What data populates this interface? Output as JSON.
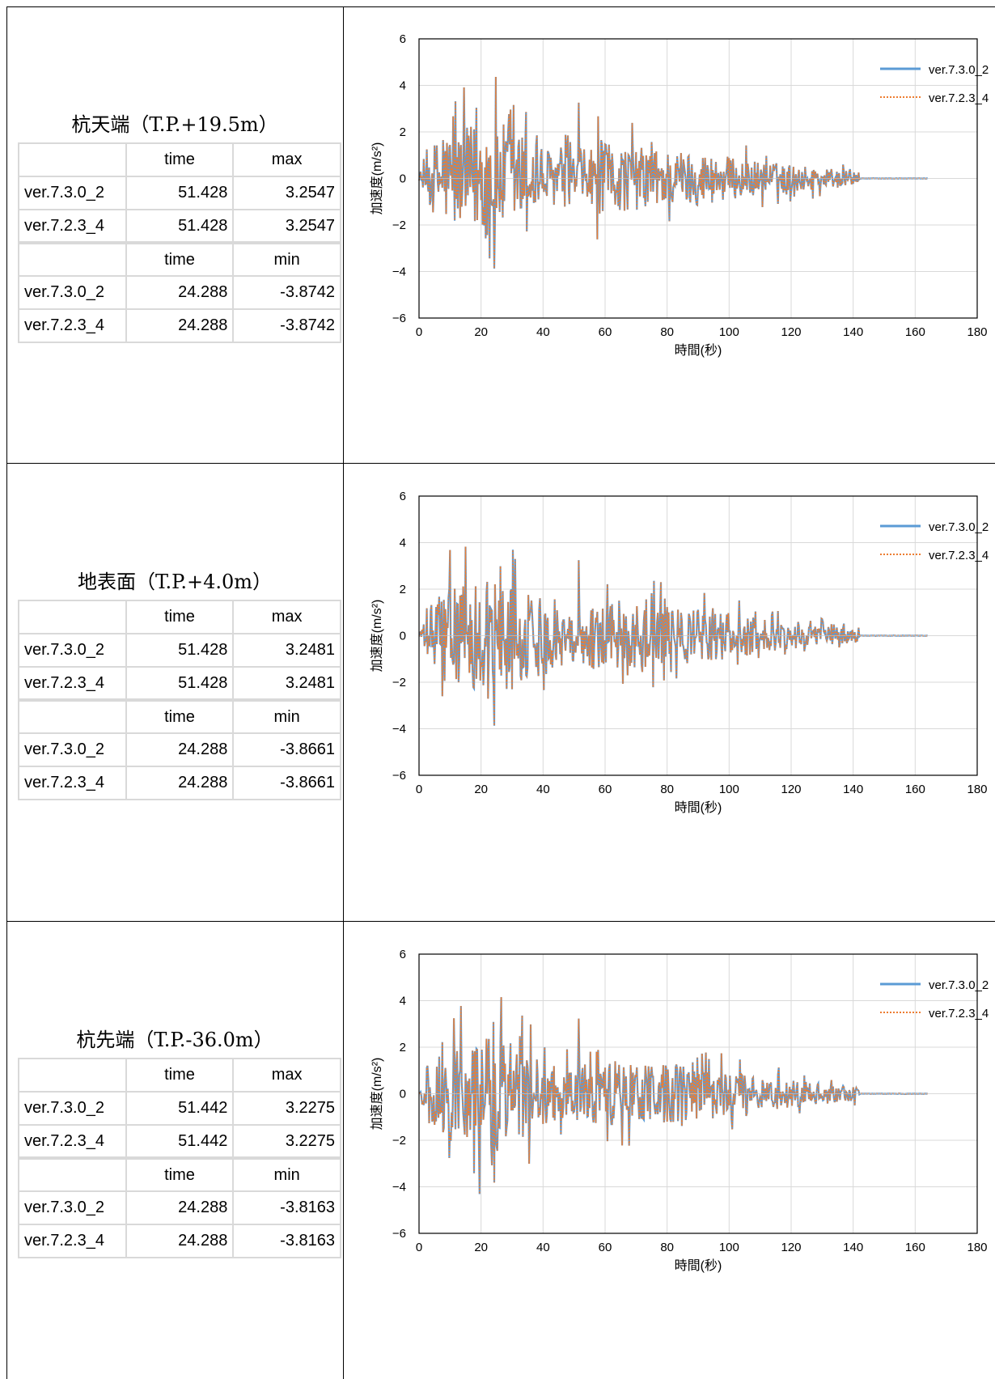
{
  "panels": [
    {
      "title": "杭天端（T.P.+19.5m）",
      "max_table": {
        "headers": [
          "",
          "time",
          "max"
        ],
        "rows": [
          [
            "ver.7.3.0_2",
            "51.428",
            "3.2547"
          ],
          [
            "ver.7.2.3_4",
            "51.428",
            "3.2547"
          ]
        ]
      },
      "min_table": {
        "headers": [
          "",
          "time",
          "min"
        ],
        "rows": [
          [
            "ver.7.3.0_2",
            "24.288",
            "-3.8742"
          ],
          [
            "ver.7.2.3_4",
            "24.288",
            "-3.8742"
          ]
        ]
      }
    },
    {
      "title": "地表面（T.P.+4.0m）",
      "max_table": {
        "headers": [
          "",
          "time",
          "max"
        ],
        "rows": [
          [
            "ver.7.3.0_2",
            "51.428",
            "3.2481"
          ],
          [
            "ver.7.2.3_4",
            "51.428",
            "3.2481"
          ]
        ]
      },
      "min_table": {
        "headers": [
          "",
          "time",
          "min"
        ],
        "rows": [
          [
            "ver.7.3.0_2",
            "24.288",
            "-3.8661"
          ],
          [
            "ver.7.2.3_4",
            "24.288",
            "-3.8661"
          ]
        ]
      }
    },
    {
      "title": "杭先端（T.P.-36.0m）",
      "max_table": {
        "headers": [
          "",
          "time",
          "max"
        ],
        "rows": [
          [
            "ver.7.3.0_2",
            "51.442",
            "3.2275"
          ],
          [
            "ver.7.2.3_4",
            "51.442",
            "3.2275"
          ]
        ]
      },
      "min_table": {
        "headers": [
          "",
          "time",
          "min"
        ],
        "rows": [
          [
            "ver.7.3.0_2",
            "24.288",
            "-3.8163"
          ],
          [
            "ver.7.2.3_4",
            "24.288",
            "-3.8163"
          ]
        ]
      }
    }
  ],
  "chart_data": [
    {
      "type": "line",
      "xlabel": "時間(秒)",
      "ylabel": "加速度(m/s²)",
      "xlim": [
        0,
        180
      ],
      "ylim": [
        -6,
        6
      ],
      "xticks": [
        "0",
        "20",
        "40",
        "60",
        "80",
        "100",
        "120",
        "140",
        "160",
        "180"
      ],
      "yticks": [
        "6",
        "4",
        "2",
        "0",
        "−2",
        "−4",
        "−6"
      ],
      "grid": true,
      "legend_position": "top-right",
      "series": [
        {
          "name": "ver.7.3.0_2",
          "color": "#5b9bd5",
          "style": "solid"
        },
        {
          "name": "ver.7.2.3_4",
          "color": "#ed7d31",
          "style": "dotted"
        }
      ],
      "peaks": [
        {
          "t": 51.428,
          "value": 3.2547
        },
        {
          "t": 24.288,
          "value": -3.8742
        }
      ],
      "duration": 164
    },
    {
      "type": "line",
      "xlabel": "時間(秒)",
      "ylabel": "加速度(m/s²)",
      "xlim": [
        0,
        180
      ],
      "ylim": [
        -6,
        6
      ],
      "xticks": [
        "0",
        "20",
        "40",
        "60",
        "80",
        "100",
        "120",
        "140",
        "160",
        "180"
      ],
      "yticks": [
        "6",
        "4",
        "2",
        "0",
        "−2",
        "−4",
        "−6"
      ],
      "grid": true,
      "legend_position": "top-right",
      "series": [
        {
          "name": "ver.7.3.0_2",
          "color": "#5b9bd5",
          "style": "solid"
        },
        {
          "name": "ver.7.2.3_4",
          "color": "#ed7d31",
          "style": "dotted"
        }
      ],
      "peaks": [
        {
          "t": 51.428,
          "value": 3.2481
        },
        {
          "t": 24.288,
          "value": -3.8661
        }
      ],
      "duration": 164
    },
    {
      "type": "line",
      "xlabel": "時間(秒)",
      "ylabel": "加速度(m/s²)",
      "xlim": [
        0,
        180
      ],
      "ylim": [
        -6,
        6
      ],
      "xticks": [
        "0",
        "20",
        "40",
        "60",
        "80",
        "100",
        "120",
        "140",
        "160",
        "180"
      ],
      "yticks": [
        "6",
        "4",
        "2",
        "0",
        "−2",
        "−4",
        "−6"
      ],
      "grid": true,
      "legend_position": "top-right",
      "series": [
        {
          "name": "ver.7.3.0_2",
          "color": "#5b9bd5",
          "style": "solid"
        },
        {
          "name": "ver.7.2.3_4",
          "color": "#ed7d31",
          "style": "dotted"
        }
      ],
      "peaks": [
        {
          "t": 51.442,
          "value": 3.2275
        },
        {
          "t": 24.288,
          "value": -3.8163
        }
      ],
      "duration": 164
    }
  ]
}
